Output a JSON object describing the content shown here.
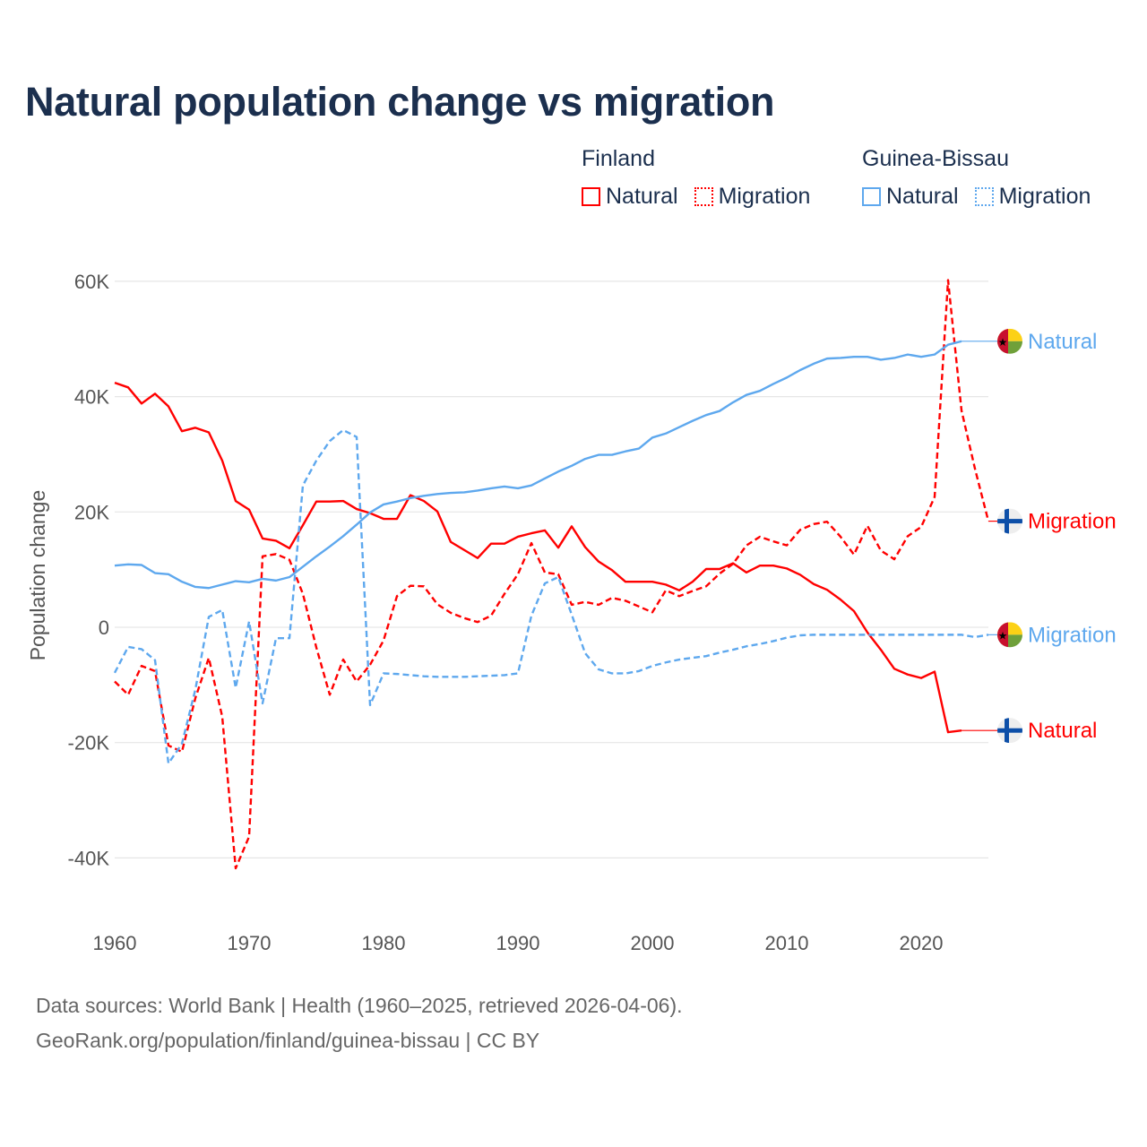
{
  "title": "Natural population change vs migration",
  "legend": {
    "groups": [
      {
        "name": "Finland",
        "items": [
          "Natural",
          "Migration"
        ],
        "color": "#ff0000"
      },
      {
        "name": "Guinea-Bissau",
        "items": [
          "Natural",
          "Migration"
        ],
        "color": "#5ea8ee"
      }
    ]
  },
  "source": {
    "line1": "Data sources: World Bank | Health (1960–2025, retrieved 2026-04-06).",
    "line2": "GeoRank.org/population/finland/guinea-bissau | CC BY"
  },
  "chart_data": {
    "type": "line",
    "title": "Natural population change vs migration",
    "xlabel": "",
    "ylabel": "Population change",
    "xlim": [
      1960,
      2025
    ],
    "ylim": [
      -50000,
      60000
    ],
    "x_ticks": [
      1960,
      1970,
      1980,
      1990,
      2000,
      2010,
      2020
    ],
    "y_ticks": [
      {
        "value": -40000,
        "label": "-40K"
      },
      {
        "value": -20000,
        "label": "-20K"
      },
      {
        "value": 0,
        "label": "0"
      },
      {
        "value": 20000,
        "label": "20K"
      },
      {
        "value": 40000,
        "label": "40K"
      },
      {
        "value": 60000,
        "label": "60K"
      }
    ],
    "grid": true,
    "legend_position": "top-right",
    "start_year": 1960,
    "series": [
      {
        "name": "Finland Natural",
        "country": "Finland",
        "kind": "Natural",
        "color": "#ff0000",
        "dash": false,
        "end_label": "Natural",
        "flag": "finland",
        "values": [
          42400,
          41600,
          38800,
          40500,
          38300,
          34000,
          34600,
          33800,
          28900,
          21900,
          20400,
          15400,
          15000,
          13700,
          17700,
          21800,
          21800,
          21900,
          20500,
          19800,
          18800,
          18800,
          22900,
          21900,
          20100,
          14800,
          13400,
          12000,
          14500,
          14500,
          15700,
          16300,
          16800,
          13800,
          17500,
          13900,
          11400,
          9900,
          7900,
          7900,
          7900,
          7400,
          6400,
          7900,
          10100,
          10100,
          11100,
          9500,
          10700,
          10700,
          10200,
          9100,
          7500,
          6500,
          4800,
          2800,
          -900,
          -3900,
          -7200,
          -8200,
          -8800,
          -7700,
          -18200,
          -17900,
          null,
          null
        ]
      },
      {
        "name": "Finland Migration",
        "country": "Finland",
        "kind": "Migration",
        "color": "#ff0000",
        "dash": true,
        "end_label": "Migration",
        "flag": "finland",
        "values": [
          -9400,
          -11700,
          -6700,
          -7600,
          -20500,
          -21600,
          -12300,
          -5300,
          -15500,
          -41800,
          -36300,
          12300,
          12700,
          11700,
          5800,
          -3500,
          -11700,
          -5600,
          -9400,
          -6500,
          -2300,
          5400,
          7200,
          7100,
          4000,
          2500,
          1600,
          900,
          2000,
          5800,
          9200,
          14600,
          9500,
          9200,
          3900,
          4400,
          3900,
          5100,
          4600,
          3600,
          2600,
          6400,
          5400,
          6300,
          7100,
          9300,
          11000,
          14200,
          15700,
          14900,
          14200,
          16900,
          17900,
          18300,
          15700,
          12600,
          17600,
          13300,
          11800,
          15800,
          17400,
          22600,
          60200,
          37600,
          27500,
          18400
        ]
      },
      {
        "name": "Guinea-Bissau Natural",
        "country": "Guinea-Bissau",
        "kind": "Natural",
        "color": "#5ea8ee",
        "dash": false,
        "end_label": "Natural",
        "flag": "guinea-bissau",
        "values": [
          10700,
          10900,
          10800,
          9400,
          9200,
          7900,
          7000,
          6800,
          7400,
          8000,
          7800,
          8400,
          8100,
          8700,
          10500,
          12300,
          14000,
          15800,
          17800,
          19900,
          21300,
          21800,
          22400,
          22800,
          23100,
          23300,
          23400,
          23700,
          24100,
          24400,
          24100,
          24600,
          25800,
          27000,
          28000,
          29200,
          29900,
          29900,
          30500,
          31000,
          32900,
          33600,
          34700,
          35800,
          36800,
          37500,
          39000,
          40300,
          41000,
          42200,
          43300,
          44600,
          45700,
          46600,
          46700,
          46900,
          46900,
          46400,
          46700,
          47300,
          46900,
          47300,
          49000,
          49600,
          null,
          null
        ]
      },
      {
        "name": "Guinea-Bissau Migration",
        "country": "Guinea-Bissau",
        "kind": "Migration",
        "color": "#5ea8ee",
        "dash": true,
        "end_label": "Migration",
        "flag": "guinea-bissau",
        "values": [
          -7900,
          -3400,
          -3800,
          -5700,
          -23600,
          -20200,
          -10800,
          1800,
          3000,
          -10500,
          1000,
          -13200,
          -1900,
          -1900,
          24600,
          28900,
          32300,
          34200,
          33000,
          -13500,
          -8000,
          -8100,
          -8300,
          -8500,
          -8600,
          -8600,
          -8600,
          -8500,
          -8400,
          -8300,
          -8000,
          2000,
          7600,
          8700,
          2200,
          -4500,
          -7300,
          -8000,
          -8000,
          -7600,
          -6700,
          -6100,
          -5600,
          -5300,
          -5000,
          -4400,
          -3900,
          -3300,
          -2900,
          -2400,
          -1800,
          -1400,
          -1300,
          -1300,
          -1300,
          -1300,
          -1300,
          -1300,
          -1300,
          -1300,
          -1300,
          -1300,
          -1300,
          -1300,
          -1700,
          -1300
        ]
      }
    ]
  }
}
